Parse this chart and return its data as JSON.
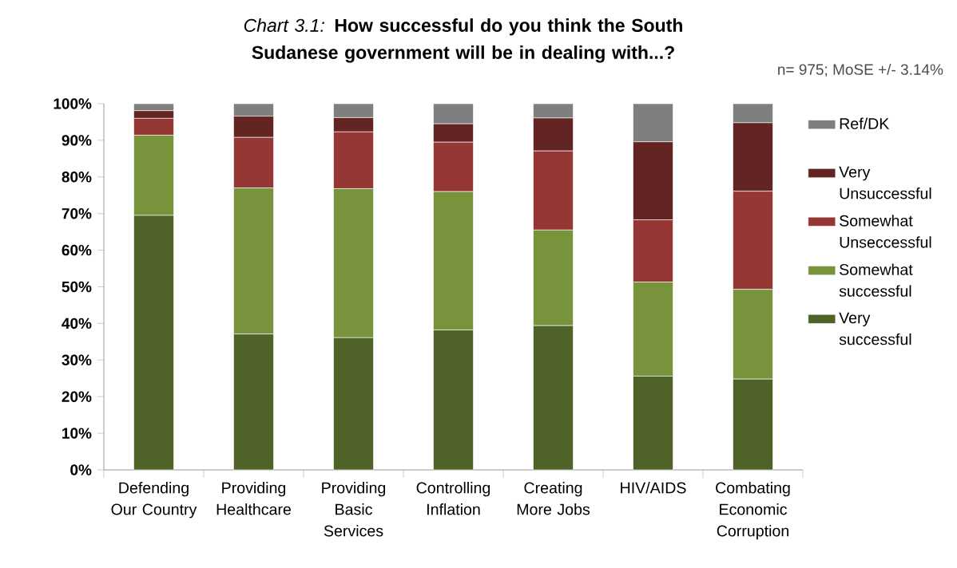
{
  "chart_data": {
    "type": "bar",
    "stacked": true,
    "title": "*Chart 3.1:* **How successful do you think the South Sudanese government will be in dealing with...?**",
    "annotations": [
      "n= 975; MoSE +/- 3.14%"
    ],
    "categories": [
      "Defending Our Country",
      "Providing Healthcare",
      "Providing Basic Services",
      "Controlling Inflation",
      "Creating More Jobs",
      "HIV/AIDS",
      "Combating Economic Corruption"
    ],
    "series": [
      {
        "name": "Very successful",
        "color": "#4f6228",
        "values": [
          69.5,
          37.1,
          36.1,
          38.2,
          39.4,
          25.6,
          24.8
        ]
      },
      {
        "name": "Somewhat successful",
        "color": "#77933c",
        "values": [
          21.9,
          39.9,
          40.7,
          37.8,
          26.1,
          25.7,
          24.5
        ]
      },
      {
        "name": "Somewhat Unseccessful",
        "color": "#953735",
        "values": [
          4.6,
          13.8,
          15.5,
          13.5,
          21.6,
          17.0,
          26.8
        ]
      },
      {
        "name": "Very Unsuccessful",
        "color": "#632523",
        "values": [
          2.1,
          5.8,
          3.9,
          5.0,
          9.0,
          21.3,
          18.7
        ]
      },
      {
        "name": "Ref/DK",
        "color": "#7f7f7f",
        "values": [
          1.9,
          3.4,
          3.8,
          5.5,
          3.9,
          10.4,
          5.2
        ]
      }
    ],
    "ylim": [
      0,
      100
    ],
    "yticks": [
      {
        "value": 0,
        "label": "0%"
      },
      {
        "value": 10,
        "label": "10%"
      },
      {
        "value": 20,
        "label": "20%"
      },
      {
        "value": 30,
        "label": "30%"
      },
      {
        "value": 40,
        "label": "40%"
      },
      {
        "value": 50,
        "label": "50%"
      },
      {
        "value": 60,
        "label": "60%"
      },
      {
        "value": 70,
        "label": "70%"
      },
      {
        "value": 80,
        "label": "80%"
      },
      {
        "value": 90,
        "label": "90%"
      },
      {
        "value": 100,
        "label": "100%"
      }
    ],
    "grid": false,
    "legend": "right"
  }
}
